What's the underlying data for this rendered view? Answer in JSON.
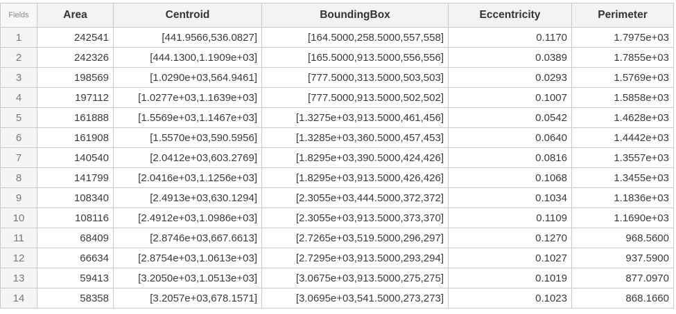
{
  "table": {
    "corner_label": "Fields",
    "columns": [
      "Area",
      "Centroid",
      "BoundingBox",
      "Eccentricity",
      "Perimeter"
    ],
    "rows": [
      {
        "index": "1",
        "area": "242541",
        "centroid": "[441.9566,536.0827]",
        "bbox": "[164.5000,258.5000,557,558]",
        "eccentricity": "0.1170",
        "perimeter": "1.7975e+03"
      },
      {
        "index": "2",
        "area": "242326",
        "centroid": "[444.1300,1.1909e+03]",
        "bbox": "[165.5000,913.5000,556,556]",
        "eccentricity": "0.0389",
        "perimeter": "1.7855e+03"
      },
      {
        "index": "3",
        "area": "198569",
        "centroid": "[1.0290e+03,564.9461]",
        "bbox": "[777.5000,313.5000,503,503]",
        "eccentricity": "0.0293",
        "perimeter": "1.5769e+03"
      },
      {
        "index": "4",
        "area": "197112",
        "centroid": "[1.0277e+03,1.1639e+03]",
        "bbox": "[777.5000,913.5000,502,502]",
        "eccentricity": "0.1007",
        "perimeter": "1.5858e+03"
      },
      {
        "index": "5",
        "area": "161888",
        "centroid": "[1.5569e+03,1.1467e+03]",
        "bbox": "[1.3275e+03,913.5000,461,456]",
        "eccentricity": "0.0542",
        "perimeter": "1.4628e+03"
      },
      {
        "index": "6",
        "area": "161908",
        "centroid": "[1.5570e+03,590.5956]",
        "bbox": "[1.3285e+03,360.5000,457,453]",
        "eccentricity": "0.0640",
        "perimeter": "1.4442e+03"
      },
      {
        "index": "7",
        "area": "140540",
        "centroid": "[2.0412e+03,603.2769]",
        "bbox": "[1.8295e+03,390.5000,424,426]",
        "eccentricity": "0.0816",
        "perimeter": "1.3557e+03"
      },
      {
        "index": "8",
        "area": "141799",
        "centroid": "[2.0416e+03,1.1256e+03]",
        "bbox": "[1.8295e+03,913.5000,426,426]",
        "eccentricity": "0.1068",
        "perimeter": "1.3455e+03"
      },
      {
        "index": "9",
        "area": "108340",
        "centroid": "[2.4913e+03,630.1294]",
        "bbox": "[2.3055e+03,444.5000,372,372]",
        "eccentricity": "0.1034",
        "perimeter": "1.1836e+03"
      },
      {
        "index": "10",
        "area": "108116",
        "centroid": "[2.4912e+03,1.0986e+03]",
        "bbox": "[2.3055e+03,913.5000,373,370]",
        "eccentricity": "0.1109",
        "perimeter": "1.1690e+03"
      },
      {
        "index": "11",
        "area": "68409",
        "centroid": "[2.8746e+03,667.6613]",
        "bbox": "[2.7265e+03,519.5000,296,297]",
        "eccentricity": "0.1270",
        "perimeter": "968.5600"
      },
      {
        "index": "12",
        "area": "66634",
        "centroid": "[2.8754e+03,1.0613e+03]",
        "bbox": "[2.7295e+03,913.5000,293,294]",
        "eccentricity": "0.1027",
        "perimeter": "937.5900"
      },
      {
        "index": "13",
        "area": "59413",
        "centroid": "[3.2050e+03,1.0513e+03]",
        "bbox": "[3.0675e+03,913.5000,275,275]",
        "eccentricity": "0.1019",
        "perimeter": "877.0970"
      },
      {
        "index": "14",
        "area": "58358",
        "centroid": "[3.2057e+03,678.1571]",
        "bbox": "[3.0695e+03,541.5000,273,273]",
        "eccentricity": "0.1023",
        "perimeter": "868.1660"
      }
    ]
  }
}
